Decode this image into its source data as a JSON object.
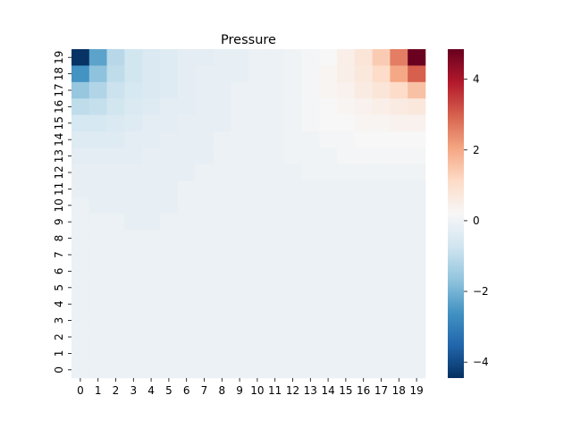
{
  "chart_data": {
    "type": "heatmap",
    "title": "Pressure",
    "xlabel": "",
    "ylabel": "",
    "x_ticks": [
      "0",
      "1",
      "2",
      "3",
      "4",
      "5",
      "6",
      "7",
      "8",
      "9",
      "10",
      "11",
      "12",
      "13",
      "14",
      "15",
      "16",
      "17",
      "18",
      "19"
    ],
    "y_ticks": [
      "0",
      "1",
      "2",
      "3",
      "4",
      "5",
      "6",
      "7",
      "8",
      "9",
      "10",
      "11",
      "12",
      "13",
      "14",
      "15",
      "16",
      "17",
      "18",
      "19"
    ],
    "colorbar": {
      "colormap": "RdBu_r",
      "vmin": -4.45,
      "vmax": 4.85,
      "ticks": [
        "−4",
        "−2",
        "0",
        "2",
        "4"
      ],
      "tick_values": [
        -4,
        -2,
        0,
        2,
        4
      ]
    },
    "grid": false,
    "row_order": "y=19 first (top) to y=0 (bottom)",
    "values": [
      [
        -4.4,
        -2.3,
        -1.1,
        -0.7,
        -0.5,
        -0.4,
        -0.3,
        -0.3,
        -0.2,
        -0.2,
        -0.1,
        -0.1,
        0.0,
        0.1,
        0.2,
        0.5,
        0.8,
        1.4,
        2.6,
        4.8
      ],
      [
        -2.6,
        -1.7,
        -1.0,
        -0.7,
        -0.5,
        -0.4,
        -0.3,
        -0.2,
        -0.2,
        -0.2,
        -0.1,
        -0.1,
        0.0,
        0.1,
        0.3,
        0.5,
        0.7,
        1.1,
        2.0,
        3.0
      ],
      [
        -1.6,
        -1.2,
        -0.8,
        -0.6,
        -0.5,
        -0.4,
        -0.3,
        -0.2,
        -0.2,
        -0.1,
        -0.1,
        -0.1,
        0.0,
        0.1,
        0.3,
        0.4,
        0.6,
        0.8,
        1.1,
        1.6
      ],
      [
        -1.0,
        -0.9,
        -0.7,
        -0.5,
        -0.4,
        -0.3,
        -0.3,
        -0.2,
        -0.2,
        -0.1,
        -0.1,
        -0.1,
        0.0,
        0.1,
        0.2,
        0.3,
        0.4,
        0.5,
        0.6,
        0.7
      ],
      [
        -0.6,
        -0.6,
        -0.5,
        -0.4,
        -0.3,
        -0.3,
        -0.2,
        -0.2,
        -0.2,
        -0.1,
        -0.1,
        -0.1,
        0.0,
        0.1,
        0.2,
        0.2,
        0.3,
        0.3,
        0.4,
        0.4
      ],
      [
        -0.4,
        -0.4,
        -0.4,
        -0.3,
        -0.3,
        -0.2,
        -0.2,
        -0.2,
        -0.1,
        -0.1,
        -0.1,
        -0.1,
        0.0,
        0.0,
        0.1,
        0.1,
        0.2,
        0.2,
        0.2,
        0.2
      ],
      [
        -0.3,
        -0.3,
        -0.3,
        -0.3,
        -0.2,
        -0.2,
        -0.2,
        -0.2,
        -0.1,
        -0.1,
        -0.1,
        -0.1,
        0.0,
        0.0,
        0.0,
        0.1,
        0.1,
        0.1,
        0.1,
        0.1
      ],
      [
        -0.2,
        -0.2,
        -0.2,
        -0.2,
        -0.2,
        -0.2,
        -0.2,
        -0.1,
        -0.1,
        -0.1,
        -0.1,
        -0.1,
        -0.1,
        0.0,
        0.0,
        0.0,
        0.0,
        0.0,
        0.0,
        0.0
      ],
      [
        -0.2,
        -0.2,
        -0.2,
        -0.2,
        -0.2,
        -0.2,
        -0.1,
        -0.1,
        -0.1,
        -0.1,
        -0.1,
        -0.1,
        -0.1,
        -0.1,
        -0.1,
        -0.1,
        -0.1,
        -0.1,
        -0.1,
        -0.1
      ],
      [
        -0.1,
        -0.2,
        -0.2,
        -0.2,
        -0.2,
        -0.2,
        -0.1,
        -0.1,
        -0.1,
        -0.1,
        -0.1,
        -0.1,
        -0.1,
        -0.1,
        -0.1,
        -0.1,
        -0.1,
        -0.1,
        -0.1,
        -0.1
      ],
      [
        -0.1,
        -0.1,
        -0.1,
        -0.2,
        -0.2,
        -0.1,
        -0.1,
        -0.1,
        -0.1,
        -0.1,
        -0.1,
        -0.1,
        -0.1,
        -0.1,
        -0.1,
        -0.1,
        -0.1,
        -0.1,
        -0.1,
        -0.1
      ],
      [
        -0.1,
        -0.1,
        -0.1,
        -0.1,
        -0.1,
        -0.1,
        -0.1,
        -0.1,
        -0.1,
        -0.1,
        -0.1,
        -0.1,
        -0.1,
        -0.1,
        -0.1,
        -0.1,
        -0.1,
        -0.1,
        -0.1,
        -0.1
      ],
      [
        -0.1,
        -0.1,
        -0.1,
        -0.1,
        -0.1,
        -0.1,
        -0.1,
        -0.1,
        -0.1,
        -0.1,
        -0.1,
        -0.1,
        -0.1,
        -0.1,
        -0.1,
        -0.1,
        -0.1,
        -0.1,
        -0.1,
        -0.1
      ],
      [
        -0.1,
        -0.1,
        -0.1,
        -0.1,
        -0.1,
        -0.1,
        -0.1,
        -0.1,
        -0.1,
        -0.1,
        -0.1,
        -0.1,
        -0.1,
        -0.1,
        -0.1,
        -0.1,
        -0.1,
        -0.1,
        -0.1,
        -0.1
      ],
      [
        -0.1,
        -0.1,
        -0.1,
        -0.1,
        -0.1,
        -0.1,
        -0.1,
        -0.1,
        -0.1,
        -0.1,
        -0.1,
        -0.1,
        -0.1,
        -0.1,
        -0.1,
        -0.1,
        -0.1,
        -0.1,
        -0.1,
        -0.1
      ],
      [
        -0.1,
        -0.1,
        -0.1,
        -0.1,
        -0.1,
        -0.1,
        -0.1,
        -0.1,
        -0.1,
        -0.1,
        -0.1,
        -0.1,
        -0.1,
        -0.1,
        -0.1,
        -0.1,
        -0.1,
        -0.1,
        -0.1,
        -0.1
      ],
      [
        -0.1,
        -0.1,
        -0.1,
        -0.1,
        -0.1,
        -0.1,
        -0.1,
        -0.1,
        -0.1,
        -0.1,
        -0.1,
        -0.1,
        -0.1,
        -0.1,
        -0.1,
        -0.1,
        -0.1,
        -0.1,
        -0.1,
        -0.1
      ],
      [
        -0.1,
        -0.1,
        -0.1,
        -0.1,
        -0.1,
        -0.1,
        -0.1,
        -0.1,
        -0.1,
        -0.1,
        -0.1,
        -0.1,
        -0.1,
        -0.1,
        -0.1,
        -0.1,
        -0.1,
        -0.1,
        -0.1,
        -0.1
      ],
      [
        -0.1,
        -0.1,
        -0.1,
        -0.1,
        -0.1,
        -0.1,
        -0.1,
        -0.1,
        -0.1,
        -0.1,
        -0.1,
        -0.1,
        -0.1,
        -0.1,
        -0.1,
        -0.1,
        -0.1,
        -0.1,
        -0.1,
        -0.1
      ],
      [
        -0.1,
        -0.1,
        -0.1,
        -0.1,
        -0.1,
        -0.1,
        -0.1,
        -0.1,
        -0.1,
        -0.1,
        -0.1,
        -0.1,
        -0.1,
        -0.1,
        -0.1,
        -0.1,
        -0.1,
        -0.1,
        -0.1,
        -0.1
      ]
    ]
  }
}
